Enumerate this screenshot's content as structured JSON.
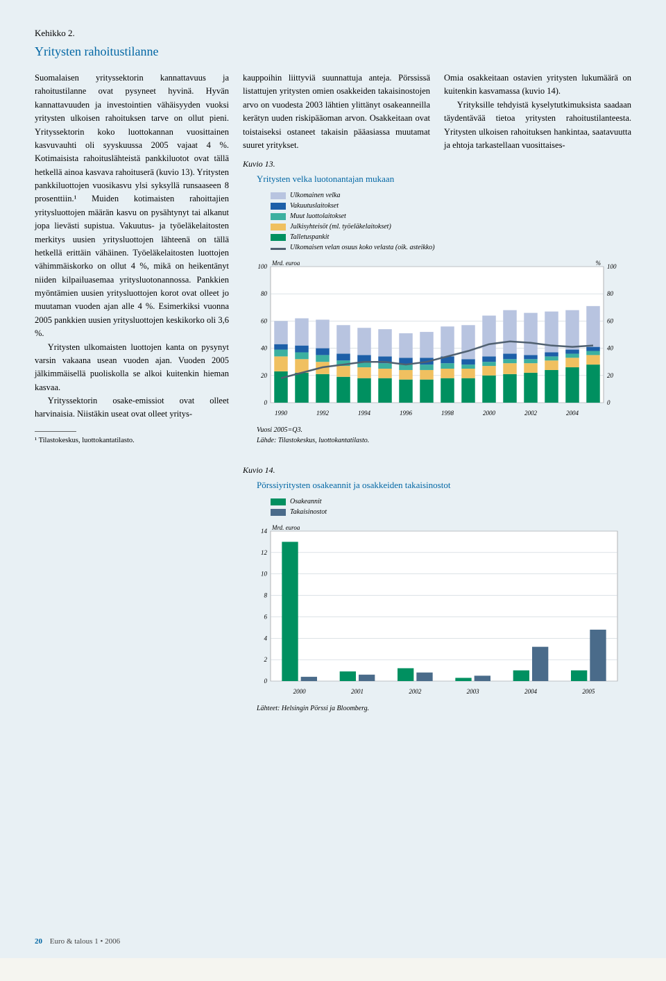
{
  "header_label": "Kehikko 2.",
  "title": "Yritysten rahoitustilanne",
  "col1": {
    "p1": "Suomalaisen yrityssektorin kannattavuus ja rahoitustilanne ovat pysyneet hyvinä. Hyvän kannattavuuden ja investointien vähäisyyden vuoksi yritysten ulkoisen rahoituksen tarve on ollut pieni. Yrityssektorin koko luottokannan vuosittainen kasvuvauhti oli syyskuussa 2005 vajaat 4 %. Kotimaisista rahoituslähteistä pankkiluotot ovat tällä hetkellä ainoa kasvava rahoituserä (kuvio 13). Yritysten pankkiluottojen vuosikasvu ylsi syksyllä runsaaseen 8 prosenttiin.¹ Muiden kotimaisten rahoittajien yritysluottojen määrän kasvu on pysähtynyt tai alkanut jopa lievästi supistua. Vakuutus- ja työeläkelaitosten merkitys uusien yritysluottojen lähteenä on tällä hetkellä erittäin vähäinen. Työeläkelaitosten luottojen vähimmäiskorko on ollut 4 %, mikä on heikentänyt niiden kilpailuasemaa yritysluotonannossa. Pankkien myöntämien uusien yritysluottojen korot ovat olleet jo muutaman vuoden ajan alle 4 %. Esimerkiksi vuonna 2005 pankkien uusien yritysluottojen keskikorko oli 3,6 %.",
    "p2": "Yritysten ulkomaisten luottojen kanta on pysynyt varsin vakaana usean vuoden ajan. Vuoden 2005 jälkimmäisellä puoliskolla se alkoi kuitenkin hieman kasvaa.",
    "p3": "Yrityssektorin osake-emissiot ovat olleet harvinaisia. Niistäkin useat ovat olleet yritys-",
    "footnote": "¹  Tilastokeskus, luottokantatilasto."
  },
  "col2": {
    "p1": "kauppoihin liittyviä suunnattuja anteja. Pörssissä listattujen yritysten omien osakkeiden takaisinostojen arvo on vuodesta 2003 lähtien ylittänyt osakeanneilla kerätyn uuden riskipääoman arvon. Osakkeitaan ovat toistaiseksi ostaneet takaisin pääasiassa muutamat suuret yritykset."
  },
  "col3": {
    "p1": "Omia osakkeitaan ostavien yritysten lukumäärä on kuitenkin kasvamassa (kuvio 14).",
    "p2": "Yrityksille tehdyistä kyselytutkimuksista saadaan täydentävää tietoa yritysten rahoitustilanteesta. Yritysten ulkoisen rahoituksen hankintaa, saatavuutta ja ehtoja tarkastellaan vuosittaises-"
  },
  "chart13": {
    "caption": "Kuvio 13.",
    "title": "Yritysten velka luotonantajan mukaan",
    "legend": [
      {
        "color": "#b8c4e0",
        "label": "Ulkomainen velka"
      },
      {
        "color": "#1d5fa8",
        "label": "Vakuutuslaitokset"
      },
      {
        "color": "#3cb0a0",
        "label": "Muut luottolaitokset"
      },
      {
        "color": "#f0c060",
        "label": "Julkisyhteisöt (ml. työeläkelaitokset)"
      },
      {
        "color": "#009060",
        "label": "Talletuspankit"
      },
      {
        "color": "#506070",
        "label": "Ulkomaisen velan osuus koko velasta (oik. asteikko)",
        "shape": "line"
      }
    ],
    "y_left_label": "Mrd. euroa",
    "y_right_label": "%",
    "ylim": [
      0,
      100
    ],
    "ytick_step": 20,
    "years": [
      1990,
      1991,
      1992,
      1993,
      1994,
      1995,
      1996,
      1997,
      1998,
      1999,
      2000,
      2001,
      2002,
      2003,
      2004,
      2005
    ],
    "x_labels": [
      1990,
      1992,
      1994,
      1996,
      1998,
      2000,
      2002,
      2004
    ],
    "stacks": [
      [
        23,
        11,
        5,
        4,
        17
      ],
      [
        22,
        10,
        5,
        5,
        20
      ],
      [
        21,
        9,
        5,
        5,
        21
      ],
      [
        19,
        8,
        4,
        5,
        21
      ],
      [
        18,
        8,
        4,
        5,
        20
      ],
      [
        18,
        7,
        4,
        5,
        20
      ],
      [
        17,
        7,
        4,
        5,
        18
      ],
      [
        17,
        7,
        4,
        5,
        19
      ],
      [
        18,
        7,
        4,
        5,
        22
      ],
      [
        18,
        7,
        3,
        4,
        25
      ],
      [
        20,
        7,
        3,
        4,
        30
      ],
      [
        21,
        8,
        3,
        4,
        32
      ],
      [
        22,
        7,
        3,
        3,
        31
      ],
      [
        24,
        7,
        3,
        3,
        30
      ],
      [
        26,
        7,
        3,
        3,
        29
      ],
      [
        28,
        7,
        3,
        3,
        30
      ]
    ],
    "line_values": [
      18,
      22,
      26,
      28,
      30,
      30,
      28,
      30,
      34,
      38,
      43,
      45,
      44,
      42,
      41,
      42
    ],
    "note": "Vuosi 2005=Q3.",
    "source": "Lähde: Tilastokeskus, luottokantatilasto.",
    "background_color": "#ffffff",
    "grid_color": "#c8d0d8"
  },
  "chart14": {
    "caption": "Kuvio 14.",
    "title": "Pörssiyritysten osakeannit ja osakkeiden takaisinostot",
    "legend": [
      {
        "color": "#009060",
        "label": "Osakeannit"
      },
      {
        "color": "#4a6b8a",
        "label": "Takaisinostot"
      }
    ],
    "y_label": "Mrd. euroa",
    "ylim": [
      0,
      14
    ],
    "ytick_step": 2,
    "years": [
      2000,
      2001,
      2002,
      2003,
      2004,
      2005
    ],
    "series": {
      "osakeannit": [
        13.0,
        0.9,
        1.2,
        0.3,
        1.0,
        1.0
      ],
      "takaisinostot": [
        0.4,
        0.6,
        0.8,
        0.5,
        3.2,
        4.8
      ]
    },
    "source": "Lähteet: Helsingin Pörssi ja Bloomberg.",
    "background_color": "#ffffff",
    "grid_color": "#c8d0d8"
  },
  "footer": {
    "page_number": "20",
    "publication": "Euro & talous 1 • 2006"
  }
}
